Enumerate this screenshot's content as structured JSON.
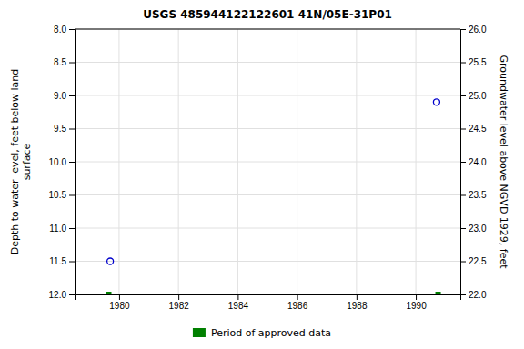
{
  "chart_data": {
    "type": "scatter",
    "title": "USGS 485944122122601 41N/05E-31P01",
    "y_label": "Depth to water level, feet below land\nsurface",
    "y2_label": "Groundwater level above NGVD 1929, feet",
    "series": [
      {
        "color": "#0000cc",
        "marker": "open-circle",
        "x": [
          1979.7,
          1990.7
        ],
        "values": [
          11.5,
          9.1
        ]
      },
      {
        "name": "Period of approved data",
        "color": "#008000",
        "marker": "square",
        "x": [
          1979.65,
          1990.75
        ],
        "values": [
          12.0,
          12.0
        ]
      }
    ],
    "xlim": [
      1978.5,
      1991.5
    ],
    "xticks": [
      1980,
      1982,
      1984,
      1986,
      1988,
      1990
    ],
    "ylim": [
      12.0,
      8.0
    ],
    "yticks": [
      {
        "value": 8.0,
        "label": "8.0"
      },
      {
        "value": 8.5,
        "label": "8.5"
      },
      {
        "value": 9.0,
        "label": "9.0"
      },
      {
        "value": 9.5,
        "label": "9.5"
      },
      {
        "value": 10.0,
        "label": "10.0"
      },
      {
        "value": 10.5,
        "label": "10.5"
      },
      {
        "value": 11.0,
        "label": "11.0"
      },
      {
        "value": 11.5,
        "label": "11.5"
      },
      {
        "value": 12.0,
        "label": "12.0"
      }
    ],
    "y2lim": [
      22.0,
      26.0
    ],
    "y2ticks": [
      {
        "value": 22.0,
        "label": "22.0"
      },
      {
        "value": 22.5,
        "label": "22.5"
      },
      {
        "value": 23.0,
        "label": "23.0"
      },
      {
        "value": 23.5,
        "label": "23.5"
      },
      {
        "value": 24.0,
        "label": "24.0"
      },
      {
        "value": 24.5,
        "label": "24.5"
      },
      {
        "value": 25.0,
        "label": "25.0"
      },
      {
        "value": 25.5,
        "label": "25.5"
      },
      {
        "value": 26.0,
        "label": "26.0"
      }
    ],
    "grid": true,
    "legend": "bottom"
  }
}
